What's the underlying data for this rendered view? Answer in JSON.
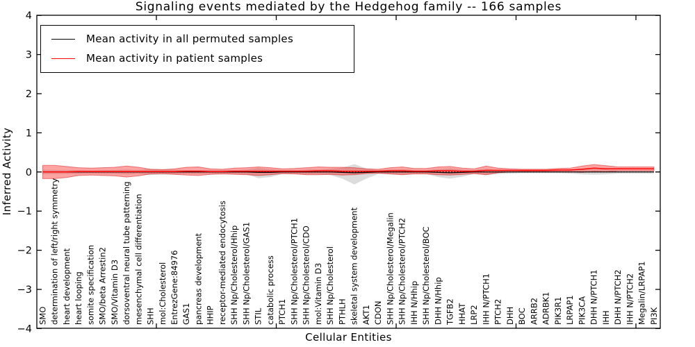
{
  "title": "Signaling events mediated by the Hedgehog family -- 166 samples",
  "ylabel": "Inferred Activity",
  "xlabel": "Cellular Entities",
  "legend": {
    "items": [
      {
        "label": "Mean activity in all permuted samples",
        "color": "#000000"
      },
      {
        "label": "Mean activity in patient samples",
        "color": "#ff0000"
      }
    ],
    "position": "upper left"
  },
  "axes": {
    "yticks": [
      "4",
      "3",
      "2",
      "1",
      "0",
      "−1",
      "−2",
      "−3",
      "−4"
    ],
    "grid": "off"
  },
  "colors": {
    "patient_line": "#ff0000",
    "permuted_line": "#000000",
    "patient_band": "rgba(255,0,0,0.36)",
    "patient_band_edge": "rgba(210,0,0,0.45)",
    "permuted_band": "rgba(128,128,128,0.28)",
    "zero_line": "#000000"
  },
  "chart_data": {
    "type": "line",
    "title": "Signaling events mediated by the Hedgehog family -- 166 samples",
    "xlabel": "Cellular Entities",
    "ylabel": "Inferred Activity",
    "ylim": [
      -4,
      4
    ],
    "legend_position": "upper left",
    "grid": false,
    "zero_line_style": "dotted",
    "categories": [
      "SMO",
      "determination of left/right symmetry",
      "heart development",
      "heart looping",
      "somite specification",
      "SMO/beta Arrestin2",
      "SMO/Vitamin D3",
      "dorsoventral neural tube patterning",
      "mesenchymal cell differentiation",
      "SHH",
      "mol:Cholesterol",
      "EntrezGene:84976",
      "GAS1",
      "pancreas development",
      "HHIP",
      "receptor-mediated endocytosis",
      "SHH Np/Cholesterol/Hhip",
      "SHH Np/Cholesterol/GAS1",
      "STIL",
      "catabolic process",
      "PTCH1",
      "SHH Np/Cholesterol/PTCH1",
      "SHH Np/Cholesterol/CDO",
      "mol:Vitamin D3",
      "SHH Np/Cholesterol",
      "PTHLH",
      "skeletal system development",
      "AKT1",
      "CDON",
      "SHH Np/Cholesterol/Megalin",
      "SHH Np/Cholesterol/PTCH2",
      "IHH N/Hhip",
      "SHH Np/Cholesterol/BOC",
      "DHH N/Hhip",
      "TGFB2",
      "HHAT",
      "LRP2",
      "IHH N/PTCH1",
      "PTCH2",
      "DHH",
      "BOC",
      "ARRB2",
      "ADRBK1",
      "PIK3R1",
      "LRPAP1",
      "PIK3CA",
      "DHH N/PTCH1",
      "IHH",
      "DHH N/PTCH2",
      "IHH N/PTCH2",
      "Megalin/LRPAP1",
      "PI3K"
    ],
    "series": [
      {
        "name": "Mean activity in all permuted samples",
        "color": "#000000",
        "values": [
          0,
          0,
          0,
          0,
          0,
          0,
          0,
          0,
          0,
          0,
          0,
          0,
          0,
          0,
          0,
          0,
          0,
          0,
          -0.01,
          -0.01,
          0,
          0,
          0,
          0,
          0,
          -0.01,
          -0.02,
          -0.01,
          0,
          0,
          0,
          0,
          0,
          -0.01,
          -0.02,
          -0.01,
          0,
          0,
          0,
          0,
          0,
          0,
          0,
          0,
          0,
          0,
          0,
          0,
          0,
          0,
          0,
          0
        ]
      },
      {
        "name": "Mean activity in patient samples",
        "color": "#ff0000",
        "values": [
          0,
          0,
          0,
          0.01,
          0.01,
          0.01,
          0.01,
          0.01,
          0.01,
          0.01,
          0.01,
          0.01,
          0.02,
          0.02,
          0.01,
          0.01,
          0.02,
          0.02,
          0.02,
          0.02,
          0.02,
          0.02,
          0.02,
          0.03,
          0.03,
          0.02,
          0.02,
          0.02,
          0.02,
          0.03,
          0.03,
          0.02,
          0.02,
          0.03,
          0.03,
          0.02,
          0.02,
          0.04,
          0.04,
          0.04,
          0.04,
          0.04,
          0.04,
          0.05,
          0.05,
          0.07,
          0.1,
          0.08,
          0.08,
          0.08,
          0.08,
          0.08
        ]
      }
    ],
    "bands": [
      {
        "name": "permuted-envelope",
        "center": [
          0,
          0,
          0,
          0,
          0,
          0,
          0,
          0,
          0,
          0,
          0,
          0,
          0,
          0,
          0,
          0,
          0,
          0,
          -0.03,
          -0.03,
          0,
          0,
          0,
          0,
          0,
          -0.03,
          -0.06,
          -0.04,
          0,
          0,
          0,
          0,
          0,
          -0.03,
          -0.04,
          -0.03,
          0,
          0,
          0,
          0,
          0,
          0,
          0,
          0,
          0,
          0,
          0,
          0,
          0,
          0,
          0,
          0
        ],
        "half_width": [
          0.06,
          0.05,
          0.05,
          0.05,
          0.04,
          0.05,
          0.05,
          0.06,
          0.05,
          0.08,
          0.07,
          0.06,
          0.05,
          0.05,
          0.05,
          0.05,
          0.05,
          0.06,
          0.13,
          0.1,
          0.05,
          0.05,
          0.06,
          0.06,
          0.08,
          0.14,
          0.26,
          0.13,
          0.05,
          0.06,
          0.07,
          0.05,
          0.05,
          0.1,
          0.13,
          0.09,
          0.05,
          0.08,
          0.05,
          0.04,
          0.03,
          0.03,
          0.03,
          0.03,
          0.04,
          0.06,
          0.07,
          0.06,
          0.04,
          0.04,
          0.04,
          0.04
        ]
      },
      {
        "name": "patient-envelope",
        "center": [
          0,
          0,
          0,
          0.01,
          0.01,
          0.01,
          0.01,
          0.01,
          0.01,
          0.01,
          0.01,
          0.01,
          0.02,
          0.02,
          0.01,
          0.01,
          0.02,
          0.02,
          0.02,
          0.02,
          0.02,
          0.02,
          0.02,
          0.03,
          0.03,
          0.02,
          0.02,
          0.02,
          0.02,
          0.03,
          0.03,
          0.02,
          0.02,
          0.03,
          0.03,
          0.02,
          0.02,
          0.04,
          0.04,
          0.04,
          0.04,
          0.04,
          0.04,
          0.05,
          0.05,
          0.07,
          0.1,
          0.08,
          0.08,
          0.08,
          0.08,
          0.08
        ],
        "half_width": [
          0.17,
          0.17,
          0.14,
          0.1,
          0.09,
          0.1,
          0.11,
          0.14,
          0.11,
          0.06,
          0.05,
          0.07,
          0.1,
          0.11,
          0.07,
          0.06,
          0.08,
          0.09,
          0.11,
          0.09,
          0.06,
          0.07,
          0.09,
          0.1,
          0.09,
          0.1,
          0.09,
          0.06,
          0.05,
          0.08,
          0.1,
          0.07,
          0.07,
          0.1,
          0.11,
          0.08,
          0.06,
          0.11,
          0.06,
          0.04,
          0.03,
          0.03,
          0.03,
          0.04,
          0.05,
          0.08,
          0.09,
          0.08,
          0.05,
          0.05,
          0.05,
          0.05
        ]
      }
    ]
  }
}
